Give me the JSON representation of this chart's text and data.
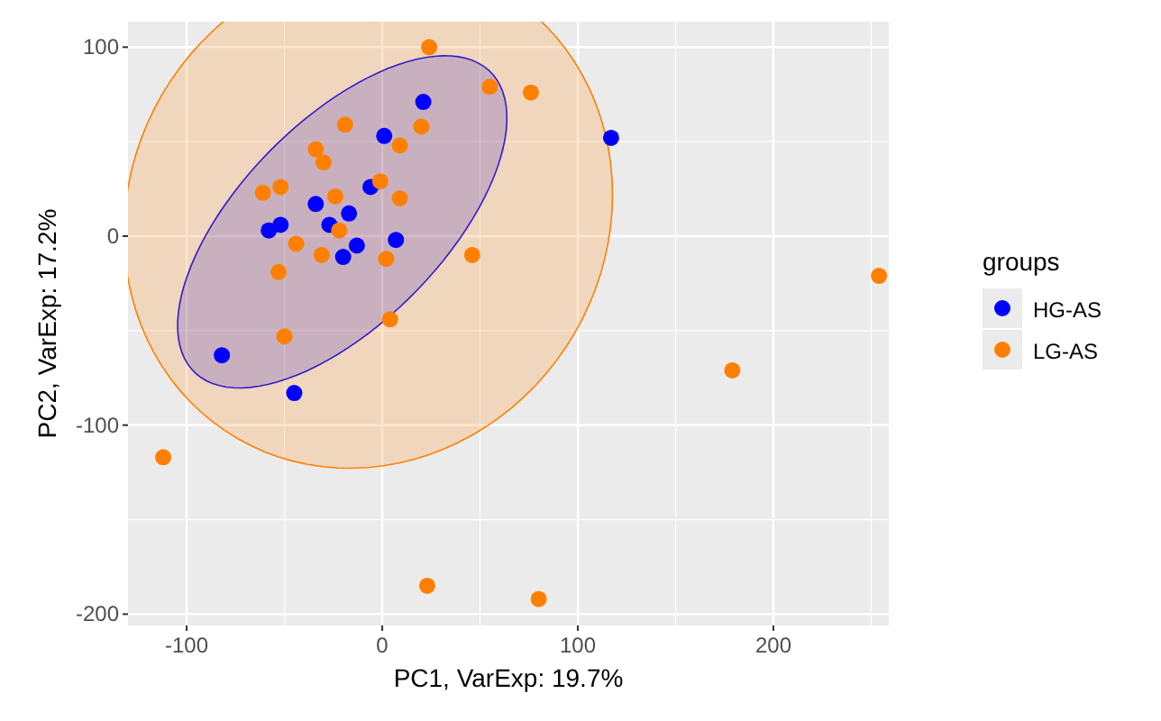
{
  "chart_data": {
    "type": "scatter",
    "xlabel": "PC1, VarExp: 19.7%",
    "ylabel": "PC2, VarExp: 17.2%",
    "legend_title": "groups",
    "legend": "right",
    "grid": true,
    "marker": "circle",
    "xlim": [
      -130,
      259
    ],
    "ylim": [
      -206,
      113.5
    ],
    "xticks": [
      -100,
      0,
      100,
      200
    ],
    "yticks": [
      -200,
      -100,
      0,
      100
    ],
    "series": [
      {
        "name": "HG-AS",
        "color": "#0000ff",
        "x": [
          21,
          1,
          -6,
          -34,
          -17,
          -27,
          -52,
          -58,
          7,
          -13,
          -20,
          -82,
          -45,
          117
        ],
        "values": [
          71,
          53,
          26,
          17,
          12,
          6,
          6,
          3,
          -2,
          -5,
          -11,
          -63,
          -83,
          52
        ]
      },
      {
        "name": "LG-AS",
        "color": "#ff8000",
        "x": [
          24,
          20,
          -19,
          9,
          -34,
          -30,
          -61,
          -52,
          -1,
          -24,
          9,
          -22,
          -44,
          -31,
          2,
          -53,
          4,
          -50,
          55,
          76,
          46,
          -112,
          23,
          80,
          179,
          254
        ],
        "values": [
          100,
          58,
          59,
          48,
          46,
          39,
          23,
          26,
          29,
          21,
          20,
          3,
          -4,
          -10,
          -12,
          -19,
          -44,
          -53,
          79,
          76,
          -10,
          -117,
          -185,
          -192,
          -71,
          -21
        ]
      }
    ]
  }
}
